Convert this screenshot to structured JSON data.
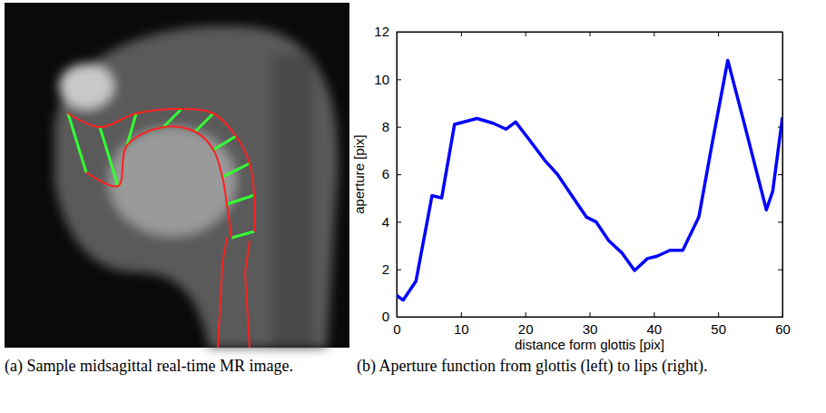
{
  "chart_data": {
    "type": "line",
    "x_label": "distance form glottis [pix]",
    "y_label": "aperture [pix]",
    "x": [
      0,
      1,
      3,
      5.5,
      7,
      9,
      12.5,
      15,
      17,
      18.5,
      20.5,
      23,
      25,
      27,
      29.5,
      31,
      33,
      35,
      37,
      39,
      40.5,
      42.5,
      44.5,
      47,
      49,
      51.5,
      54,
      57.5,
      58.5,
      60
    ],
    "values": [
      0.9,
      0.7,
      1.5,
      5.1,
      5.0,
      8.1,
      8.35,
      8.15,
      7.9,
      8.2,
      7.5,
      6.6,
      6.0,
      5.2,
      4.2,
      4.0,
      3.2,
      2.7,
      1.95,
      2.45,
      2.55,
      2.8,
      2.8,
      4.2,
      7.2,
      10.8,
      8.2,
      4.5,
      5.3,
      8.4
    ],
    "color": "#0000ff",
    "xlim": [
      0,
      60
    ],
    "xticks": [
      0,
      10,
      20,
      30,
      40,
      50,
      60
    ],
    "ylim": [
      0,
      12
    ],
    "yticks": [
      0,
      2,
      4,
      6,
      8,
      10,
      12
    ],
    "grid": false
  },
  "captions": [
    "(a) Sample midsagittal real-time MR image.",
    "(b) Aperture function from glottis (left) to lips (right)."
  ]
}
